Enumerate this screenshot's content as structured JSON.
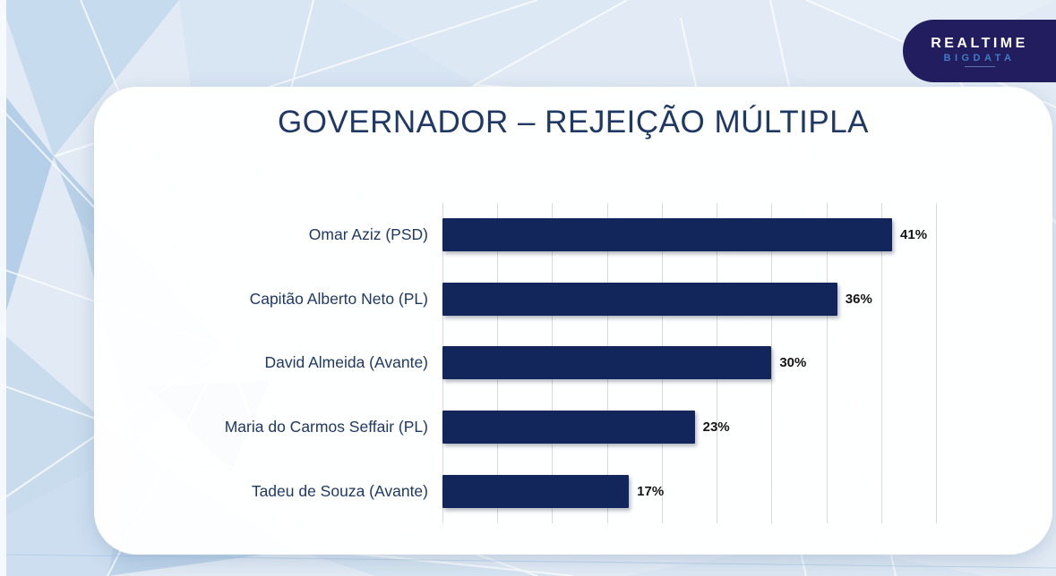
{
  "title": "GOVERNADOR – REJEIÇÃO MÚLTIPLA",
  "logo": {
    "line1": "REALTIME",
    "line2": "BIGDATA",
    "bg_color": "#211d5e",
    "line1_color": "#ffffff",
    "line2_color": "#3e7dc4"
  },
  "chart_data": {
    "type": "bar",
    "orientation": "horizontal",
    "title": "GOVERNADOR – REJEIÇÃO MÚLTIPLA",
    "categories": [
      "Omar Aziz (PSD)",
      "Capitão Alberto Neto (PL)",
      "David Almeida (Avante)",
      "Maria do Carmos Seffair (PL)",
      "Tadeu de Souza (Avante)"
    ],
    "values": [
      41,
      36,
      30,
      23,
      17
    ],
    "value_labels": [
      "41%",
      "36%",
      "30%",
      "23%",
      "17%"
    ],
    "xlabel": "",
    "ylabel": "",
    "xlim": [
      0,
      45
    ],
    "gridline_step": 5,
    "grid": true,
    "legend": false,
    "bar_color": "#13265c",
    "category_label_color": "#1f3864",
    "value_label_color": "#151515",
    "gridline_color": "#d9d9d9"
  }
}
